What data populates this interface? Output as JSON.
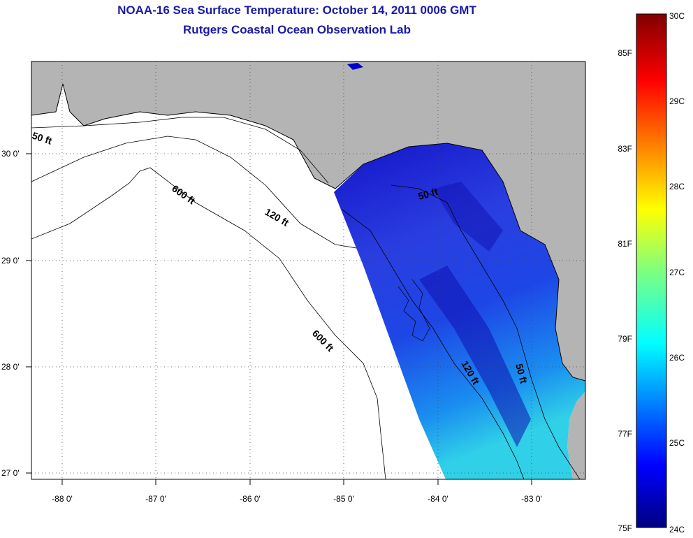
{
  "header": {
    "title": "NOAA-16 Sea Surface Temperature:  October 14, 2011 0006 GMT",
    "subtitle": "Rutgers Coastal Ocean Observation Lab"
  },
  "map": {
    "lon_ticks": [
      "-88 0'",
      "-87 0'",
      "-86 0'",
      "-85 0'",
      "-84 0'",
      "-83 0'"
    ],
    "lat_ticks": [
      "30 0'",
      "29 0'",
      "28 0'",
      "27 0'"
    ],
    "contour_labels": [
      "50 ft",
      "600 ft",
      "120 ft",
      "600 ft",
      "50 ft",
      "120 ft",
      "50 ft"
    ],
    "land_color": "#b4b4b4",
    "water_color": "#ffffff"
  },
  "colorbar": {
    "fahrenheit": [
      "85F",
      "83F",
      "81F",
      "79F",
      "77F",
      "75F"
    ],
    "celsius": [
      "30C",
      "29C",
      "28C",
      "27C",
      "26C",
      "25C",
      "24C"
    ]
  }
}
